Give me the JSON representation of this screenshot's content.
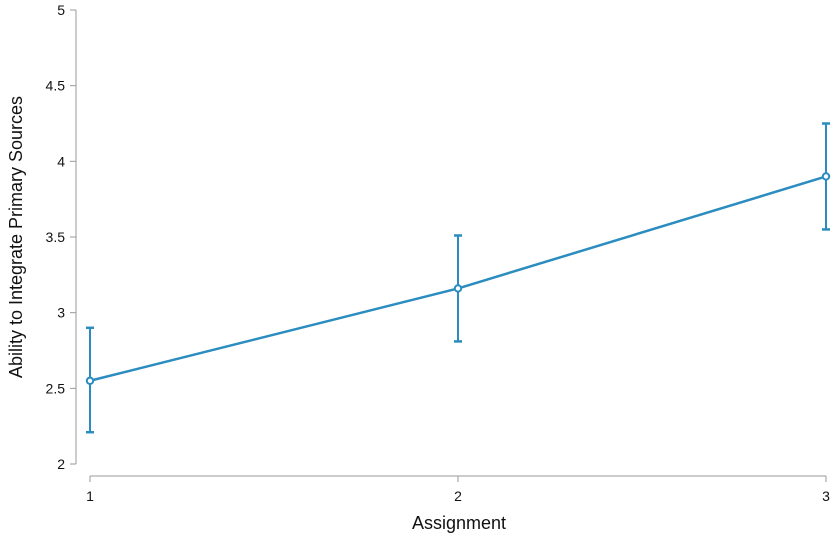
{
  "chart_data": {
    "type": "line",
    "xlabel": "Assignment",
    "ylabel": "Ability to Integrate Primary Sources",
    "x": [
      1,
      2,
      3
    ],
    "x_tick_labels": [
      "1",
      "2",
      "3"
    ],
    "y_tick_labels": [
      "2",
      "2.5",
      "3",
      "3.5",
      "4",
      "4.5",
      "5"
    ],
    "y_ticks": [
      2,
      2.5,
      3,
      3.5,
      4,
      4.5,
      5
    ],
    "ylim": [
      2,
      5
    ],
    "xlim": [
      1,
      3
    ],
    "grid": false,
    "series": [
      {
        "values": [
          2.55,
          3.16,
          3.9
        ],
        "error_low": [
          2.21,
          2.81,
          3.55
        ],
        "error_high": [
          2.9,
          3.51,
          4.25
        ],
        "color": "#2a8cbf"
      }
    ]
  }
}
